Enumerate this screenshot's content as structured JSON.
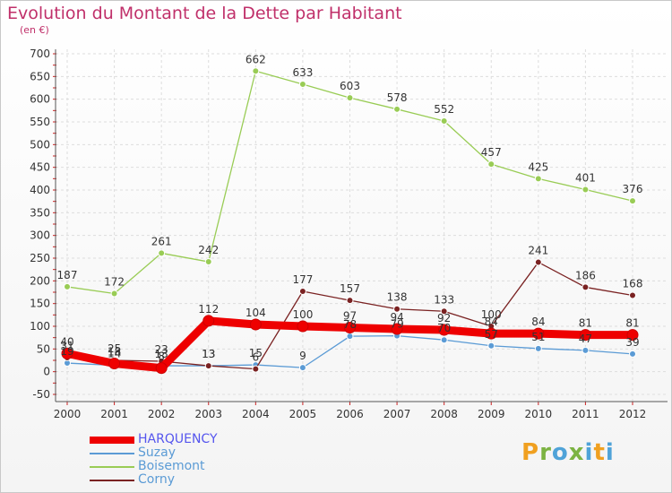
{
  "title": "Evolution du Montant de la Dette par Habitant",
  "unit_label": "(en €)",
  "logo_text": "Proxiti",
  "chart_data": {
    "type": "line",
    "title": "Evolution du Montant de la Dette par Habitant",
    "ylabel": "(en €)",
    "x": [
      2000,
      2001,
      2002,
      2003,
      2004,
      2005,
      2006,
      2007,
      2008,
      2009,
      2010,
      2011,
      2012
    ],
    "x_tick_labels": [
      "2000",
      "2001",
      "2002",
      "2003",
      "2004",
      "2005",
      "2006",
      "2007",
      "2008",
      "2009",
      "2010",
      "2011",
      "2012"
    ],
    "ylim": [
      -50,
      700
    ],
    "y_ticks": [
      -50,
      0,
      50,
      100,
      150,
      200,
      250,
      300,
      350,
      400,
      450,
      500,
      550,
      600,
      650,
      700
    ],
    "grid": true,
    "legend_position": "bottom-left",
    "series": [
      {
        "name": "Suzay",
        "color": "#5b9bd5",
        "values": [
          19,
          14,
          13,
          13,
          15,
          9,
          78,
          79,
          70,
          57,
          51,
          47,
          39
        ]
      },
      {
        "name": "Boisemont",
        "color": "#99cc55",
        "values": [
          187,
          172,
          261,
          242,
          662,
          633,
          603,
          578,
          552,
          457,
          425,
          401,
          376
        ]
      },
      {
        "name": "Corny",
        "color": "#7a2222",
        "values": [
          31,
          25,
          23,
          13,
          6,
          177,
          157,
          138,
          133,
          100,
          241,
          186,
          168
        ]
      },
      {
        "name": "HARQUENCY",
        "color": "#ee0000",
        "values": [
          40,
          18,
          8,
          112,
          104,
          100,
          97,
          94,
          92,
          84,
          84,
          81,
          81
        ]
      }
    ],
    "legend_order": [
      "HARQUENCY",
      "Suzay",
      "Boisemont",
      "Corny"
    ]
  }
}
